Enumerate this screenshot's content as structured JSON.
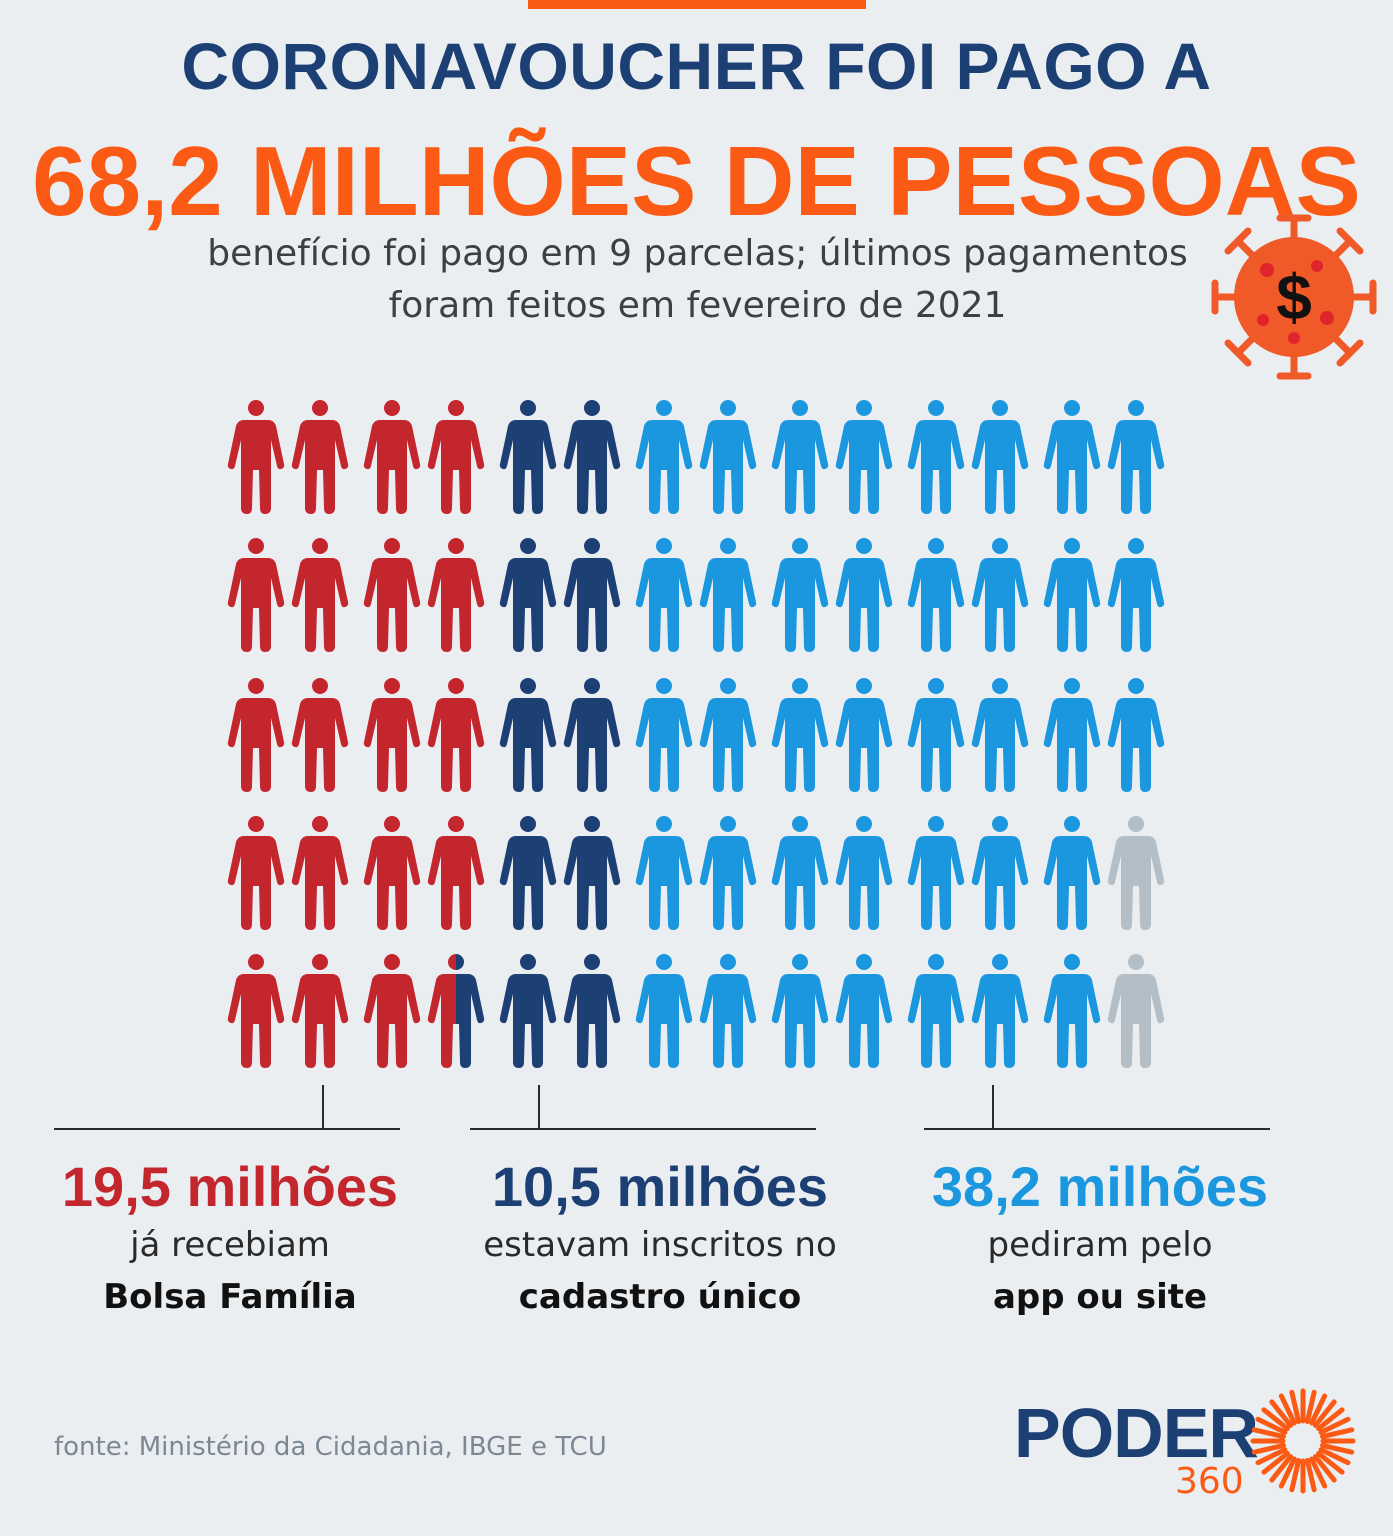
{
  "header": {
    "title": "CORONAVOUCHER FOI PAGO A",
    "headline": "68,2 MILHÕES DE PESSOAS",
    "subtitle_line1": "benefício foi pago em 9 parcelas; últimos pagamentos",
    "subtitle_line2": "foram feitos em fevereiro de 2021"
  },
  "colors": {
    "bolsa": "#c4262e",
    "cadastro": "#1c3f74",
    "app": "#1a97de",
    "empty": "#b4bec6",
    "accent": "#fa5a14"
  },
  "chart_data": {
    "type": "pictogram",
    "rows": 5,
    "columns": 14,
    "total": "68,2 milhões",
    "series": [
      {
        "name": "já recebiam Bolsa Família",
        "value": 19.5
      },
      {
        "name": "estavam inscritos no cadastro único",
        "value": 10.5
      },
      {
        "name": "pediram pelo app ou site",
        "value": 38.2
      }
    ]
  },
  "stats": [
    {
      "value": "19,5 milhões",
      "line1": "já recebiam",
      "line2": "Bolsa Família"
    },
    {
      "value": "10,5 milhões",
      "line1": "estavam inscritos no",
      "line2": "cadastro único"
    },
    {
      "value": "38,2 milhões",
      "line1": "pediram pelo",
      "line2": "app ou site"
    }
  ],
  "footer": {
    "source": "fonte: Ministério da Cidadania, IBGE e TCU",
    "logo_word": "PODER",
    "logo_number": "360"
  }
}
